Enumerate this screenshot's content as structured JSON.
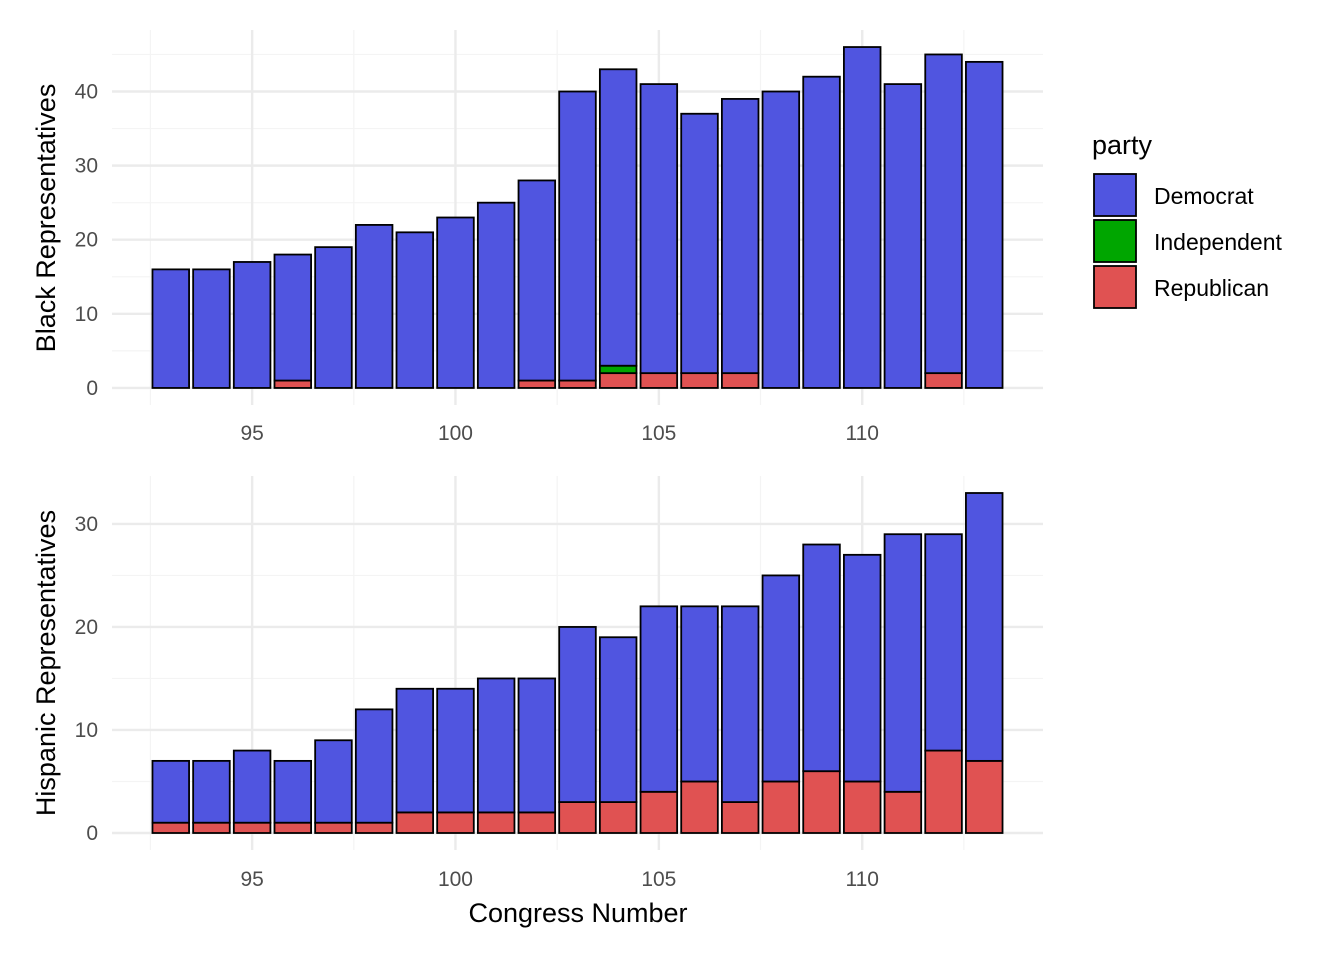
{
  "chart_data": [
    {
      "type": "bar",
      "stacked": true,
      "x": [
        93,
        94,
        95,
        96,
        97,
        98,
        99,
        100,
        101,
        102,
        103,
        104,
        105,
        106,
        107,
        108,
        109,
        110,
        111,
        112,
        113
      ],
      "series": [
        {
          "name": "Democrat",
          "values": [
            16,
            16,
            17,
            17,
            19,
            22,
            21,
            23,
            25,
            27,
            39,
            40,
            39,
            35,
            37,
            40,
            42,
            46,
            41,
            43,
            44
          ]
        },
        {
          "name": "Independent",
          "values": [
            0,
            0,
            0,
            0,
            0,
            0,
            0,
            0,
            0,
            0,
            0,
            1,
            0,
            0,
            0,
            0,
            0,
            0,
            0,
            0,
            0
          ]
        },
        {
          "name": "Republican",
          "values": [
            0,
            0,
            0,
            1,
            0,
            0,
            0,
            0,
            0,
            1,
            1,
            2,
            2,
            2,
            2,
            0,
            0,
            0,
            0,
            2,
            0
          ]
        }
      ],
      "xlabel": "",
      "ylabel": "Black Representatives",
      "xlim": [
        92.5,
        113.5
      ],
      "ylim": [
        0,
        46
      ],
      "xticks": [
        95,
        100,
        105,
        110
      ],
      "yticks": [
        0,
        10,
        20,
        30,
        40
      ],
      "grid": true,
      "legend": "right"
    },
    {
      "type": "bar",
      "stacked": true,
      "x": [
        93,
        94,
        95,
        96,
        97,
        98,
        99,
        100,
        101,
        102,
        103,
        104,
        105,
        106,
        107,
        108,
        109,
        110,
        111,
        112,
        113
      ],
      "series": [
        {
          "name": "Democrat",
          "values": [
            6,
            6,
            7,
            6,
            8,
            11,
            12,
            12,
            13,
            13,
            17,
            16,
            18,
            17,
            19,
            20,
            22,
            22,
            25,
            21,
            26
          ]
        },
        {
          "name": "Independent",
          "values": [
            0,
            0,
            0,
            0,
            0,
            0,
            0,
            0,
            0,
            0,
            0,
            0,
            0,
            0,
            0,
            0,
            0,
            0,
            0,
            0,
            0
          ]
        },
        {
          "name": "Republican",
          "values": [
            1,
            1,
            1,
            1,
            1,
            1,
            2,
            2,
            2,
            2,
            3,
            3,
            4,
            5,
            3,
            5,
            6,
            5,
            4,
            8,
            7
          ]
        }
      ],
      "xlabel": "Congress Number",
      "ylabel": "Hispanic Representatives",
      "xlim": [
        92.5,
        113.5
      ],
      "ylim": [
        0,
        33
      ],
      "xticks": [
        95,
        100,
        105,
        110
      ],
      "yticks": [
        0,
        10,
        20,
        30
      ],
      "grid": true,
      "legend": "right"
    }
  ],
  "legend": {
    "title": "party",
    "entries": [
      {
        "name": "Democrat",
        "color": "#5055e0"
      },
      {
        "name": "Independent",
        "color": "#00a600"
      },
      {
        "name": "Republican",
        "color": "#e05252"
      }
    ]
  }
}
